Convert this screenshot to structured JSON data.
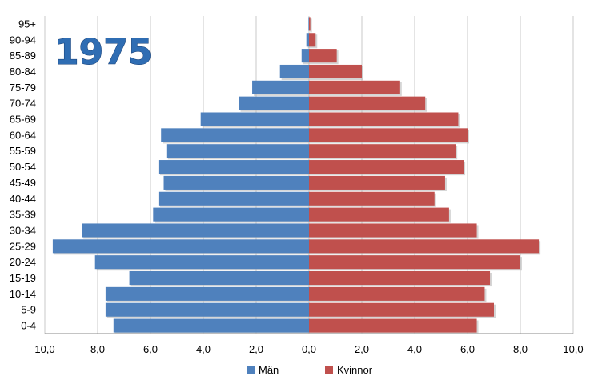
{
  "chart_data": {
    "type": "bar",
    "orientation": "horizontal",
    "subtype": "population-pyramid",
    "title": "1975",
    "categories": [
      "0-4",
      "5-9",
      "10-14",
      "15-19",
      "20-24",
      "25-29",
      "30-34",
      "35-39",
      "40-44",
      "45-49",
      "50-54",
      "55-59",
      "60-64",
      "65-69",
      "70-74",
      "75-79",
      "80-84",
      "85-89",
      "90-94",
      "95+"
    ],
    "series": [
      {
        "name": "Män",
        "values": [
          7.4,
          7.7,
          7.7,
          6.8,
          8.1,
          9.7,
          8.6,
          5.9,
          5.7,
          5.5,
          5.7,
          5.4,
          5.6,
          4.1,
          2.65,
          2.15,
          1.1,
          0.28,
          0.1,
          0.02
        ]
      },
      {
        "name": "Kvinnor",
        "values": [
          6.35,
          7.0,
          6.65,
          6.85,
          8.0,
          8.7,
          6.35,
          5.3,
          4.75,
          5.15,
          5.85,
          5.55,
          6.0,
          5.65,
          4.4,
          3.45,
          2.0,
          1.05,
          0.25,
          0.05
        ]
      }
    ],
    "xlim": [
      -10,
      10
    ],
    "x_ticks": [
      "10,0",
      "8,0",
      "6,0",
      "4,0",
      "2,0",
      "0,0",
      "2,0",
      "4,0",
      "6,0",
      "8,0",
      "10,0"
    ],
    "grid": "vertical",
    "legend": "bottom-center",
    "colors": {
      "Män": "#4f81bd",
      "Kvinnor": "#c0504d"
    }
  }
}
